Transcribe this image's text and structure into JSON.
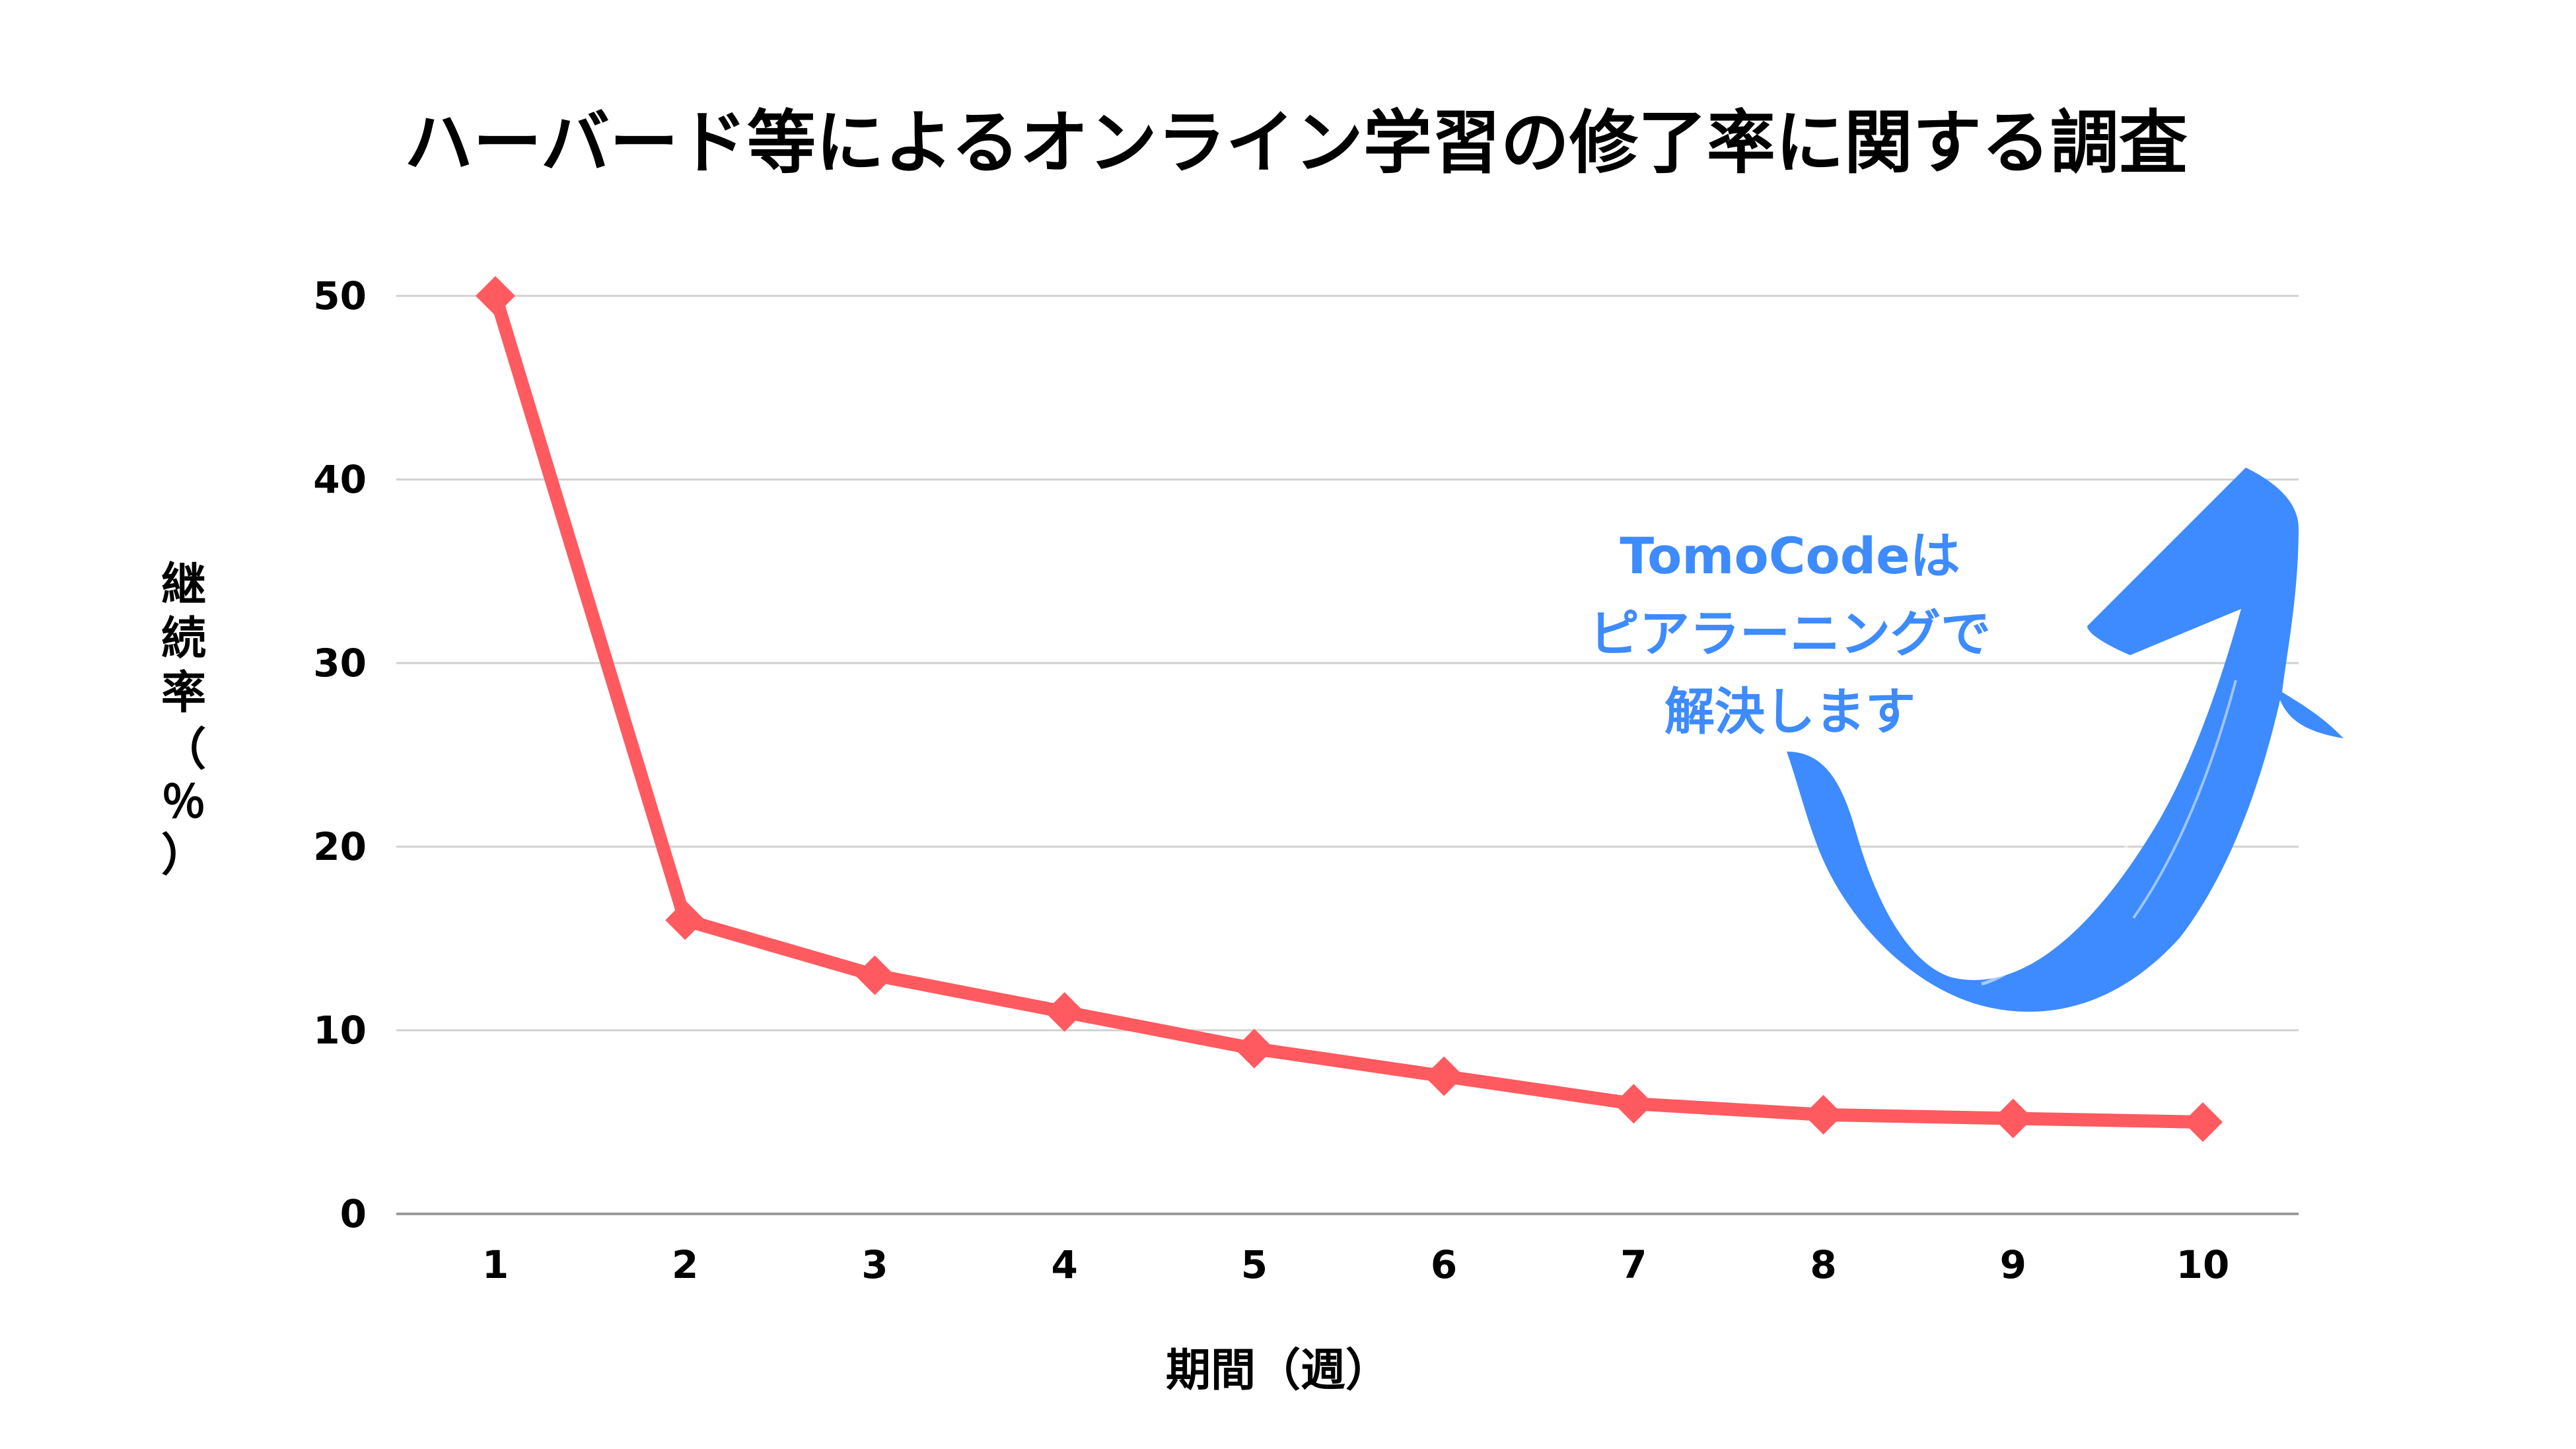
{
  "chart_data": {
    "type": "line",
    "title": "ハーバード等によるオンライン学習の修了率に関する調査",
    "xlabel": "期間（週）",
    "ylabel_chars": [
      "継",
      "続",
      "率",
      "（",
      "％",
      "）"
    ],
    "categories": [
      "1",
      "2",
      "3",
      "4",
      "5",
      "6",
      "7",
      "8",
      "9",
      "10"
    ],
    "series": [
      {
        "name": "継続率",
        "values": [
          50,
          16,
          13,
          11,
          9,
          7.5,
          6,
          5.4,
          5.2,
          5
        ],
        "color": "#ff5a5f"
      }
    ],
    "ylim": [
      0,
      50
    ],
    "yticks": [
      "0",
      "10",
      "20",
      "30",
      "40",
      "50"
    ],
    "grid": true,
    "legend": "none",
    "annotation": {
      "lines": [
        "TomoCodeは",
        "ピアラーニングで",
        "解決します"
      ],
      "color": "#3d8bff",
      "arrow": "curved-up-arrow"
    }
  }
}
